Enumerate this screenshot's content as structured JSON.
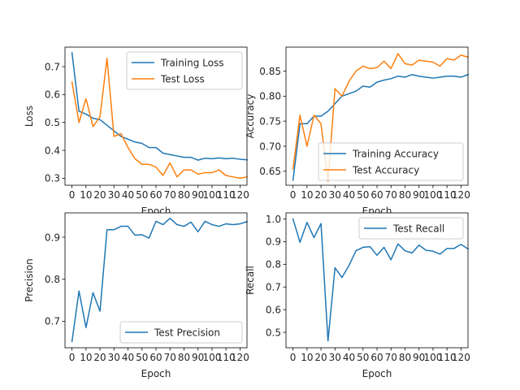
{
  "colors": {
    "series1": "#1f77b4",
    "series2": "#ff7f0e"
  },
  "chart_data": [
    {
      "type": "line",
      "xlabel": "Epoch",
      "ylabel": "Loss",
      "xlim": [
        -5,
        125
      ],
      "ylim": [
        0.275,
        0.77
      ],
      "xticks": [
        0,
        10,
        20,
        30,
        40,
        50,
        60,
        70,
        80,
        90,
        100,
        110,
        120
      ],
      "yticks": [
        0.3,
        0.4,
        0.5,
        0.6,
        0.7
      ],
      "ytick_labels": [
        "0.3",
        "0.4",
        "0.5",
        "0.6",
        "0.7"
      ],
      "legend_position": "upper-right",
      "x": [
        0,
        5,
        10,
        15,
        20,
        25,
        30,
        35,
        40,
        45,
        50,
        55,
        60,
        65,
        70,
        75,
        80,
        85,
        90,
        95,
        100,
        105,
        110,
        115,
        120,
        125
      ],
      "series": [
        {
          "name": "Training Loss",
          "color": "#1f77b4",
          "values": [
            0.75,
            0.54,
            0.53,
            0.515,
            0.51,
            0.49,
            0.47,
            0.45,
            0.44,
            0.43,
            0.425,
            0.41,
            0.41,
            0.39,
            0.385,
            0.38,
            0.375,
            0.375,
            0.365,
            0.372,
            0.37,
            0.373,
            0.37,
            0.372,
            0.368,
            0.366
          ]
        },
        {
          "name": "Test Loss",
          "color": "#ff7f0e",
          "values": [
            0.645,
            0.5,
            0.585,
            0.485,
            0.52,
            0.73,
            0.45,
            0.46,
            0.41,
            0.37,
            0.35,
            0.35,
            0.34,
            0.31,
            0.355,
            0.305,
            0.33,
            0.33,
            0.315,
            0.32,
            0.32,
            0.33,
            0.31,
            0.305,
            0.3,
            0.305
          ]
        }
      ]
    },
    {
      "type": "line",
      "xlabel": "Epoch",
      "ylabel": "Accuracy",
      "xlim": [
        -5,
        125
      ],
      "ylim": [
        0.622,
        0.898
      ],
      "xticks": [
        0,
        10,
        20,
        30,
        40,
        50,
        60,
        70,
        80,
        90,
        100,
        110,
        120
      ],
      "yticks": [
        0.65,
        0.7,
        0.75,
        0.8,
        0.85
      ],
      "ytick_labels": [
        "0.65",
        "0.70",
        "0.75",
        "0.80",
        "0.85"
      ],
      "legend_position": "lower-right",
      "x": [
        0,
        5,
        10,
        15,
        20,
        25,
        30,
        35,
        40,
        45,
        50,
        55,
        60,
        65,
        70,
        75,
        80,
        85,
        90,
        95,
        100,
        105,
        110,
        115,
        120,
        125
      ],
      "series": [
        {
          "name": "Training Accuracy",
          "color": "#1f77b4",
          "values": [
            0.632,
            0.745,
            0.745,
            0.76,
            0.76,
            0.77,
            0.785,
            0.8,
            0.805,
            0.81,
            0.82,
            0.818,
            0.828,
            0.832,
            0.835,
            0.84,
            0.838,
            0.843,
            0.84,
            0.838,
            0.836,
            0.838,
            0.84,
            0.84,
            0.838,
            0.843
          ]
        },
        {
          "name": "Test Accuracy",
          "color": "#ff7f0e",
          "values": [
            0.655,
            0.762,
            0.7,
            0.762,
            0.745,
            0.63,
            0.815,
            0.8,
            0.83,
            0.85,
            0.86,
            0.855,
            0.857,
            0.87,
            0.855,
            0.885,
            0.865,
            0.862,
            0.872,
            0.87,
            0.868,
            0.86,
            0.875,
            0.872,
            0.882,
            0.878
          ]
        }
      ]
    },
    {
      "type": "line",
      "xlabel": "Epoch",
      "ylabel": "Precision",
      "xlim": [
        -5,
        125
      ],
      "ylim": [
        0.637,
        0.958
      ],
      "xticks": [
        0,
        10,
        20,
        30,
        40,
        50,
        60,
        70,
        80,
        90,
        100,
        110,
        120
      ],
      "yticks": [
        0.7,
        0.8,
        0.9
      ],
      "ytick_labels": [
        "0.7",
        "0.8",
        "0.9"
      ],
      "legend_position": "lower-right",
      "x": [
        0,
        5,
        10,
        15,
        20,
        25,
        30,
        35,
        40,
        45,
        50,
        55,
        60,
        65,
        70,
        75,
        80,
        85,
        90,
        95,
        100,
        105,
        110,
        115,
        120,
        125
      ],
      "series": [
        {
          "name": "Test Precision",
          "color": "#1f77b4",
          "values": [
            0.652,
            0.772,
            0.685,
            0.768,
            0.724,
            0.918,
            0.918,
            0.926,
            0.926,
            0.905,
            0.906,
            0.898,
            0.938,
            0.93,
            0.945,
            0.93,
            0.926,
            0.936,
            0.913,
            0.938,
            0.93,
            0.926,
            0.932,
            0.93,
            0.932,
            0.937
          ]
        }
      ]
    },
    {
      "type": "line",
      "xlabel": "Epoch",
      "ylabel": "Recall",
      "xlim": [
        -5,
        125
      ],
      "ylim": [
        0.432,
        1.027
      ],
      "xticks": [
        0,
        10,
        20,
        30,
        40,
        50,
        60,
        70,
        80,
        90,
        100,
        110,
        120
      ],
      "yticks": [
        0.5,
        0.6,
        0.7,
        0.8,
        0.9,
        1.0
      ],
      "ytick_labels": [
        "0.5",
        "0.6",
        "0.7",
        "0.8",
        "0.9",
        "1.0"
      ],
      "legend_position": "upper-right",
      "x": [
        0,
        5,
        10,
        15,
        20,
        25,
        30,
        35,
        40,
        45,
        50,
        55,
        60,
        65,
        70,
        75,
        80,
        85,
        90,
        95,
        100,
        105,
        110,
        115,
        120,
        125
      ],
      "series": [
        {
          "name": "Test Recall",
          "color": "#1f77b4",
          "values": [
            1.0,
            0.897,
            0.985,
            0.918,
            0.98,
            0.462,
            0.785,
            0.742,
            0.795,
            0.86,
            0.875,
            0.878,
            0.84,
            0.875,
            0.82,
            0.89,
            0.86,
            0.85,
            0.885,
            0.862,
            0.858,
            0.845,
            0.87,
            0.87,
            0.888,
            0.868
          ]
        }
      ]
    }
  ]
}
